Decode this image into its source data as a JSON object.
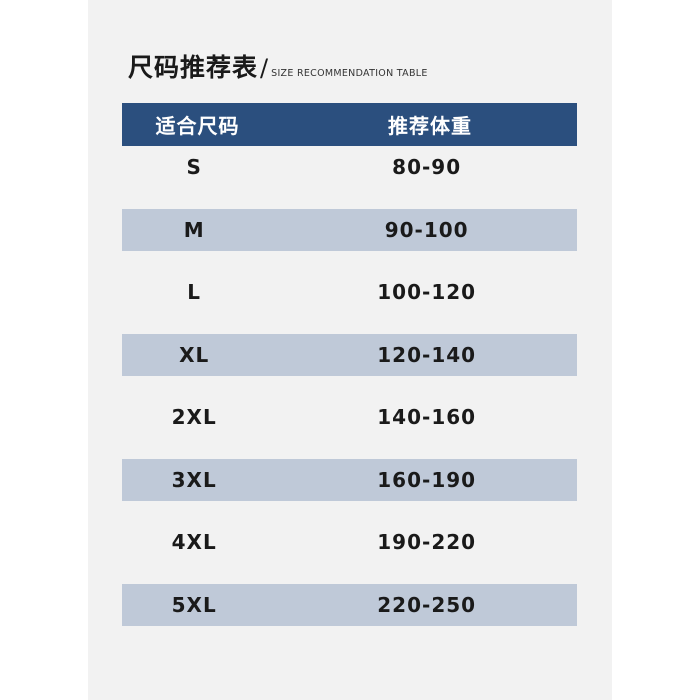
{
  "title": {
    "cn": "尺码推荐表",
    "slash": "/",
    "en": "SIZE RECOMMENDATION TABLE"
  },
  "colors": {
    "header_bg": "#2b4f7e",
    "shaded_row": "#bfc9d8",
    "panel": "#f2f2f2"
  },
  "table": {
    "headers": [
      "适合尺码",
      "推荐体重"
    ],
    "rows": [
      [
        "S",
        "80-90"
      ],
      [
        "M",
        "90-100"
      ],
      [
        "L",
        "100-120"
      ],
      [
        "XL",
        "120-140"
      ],
      [
        "2XL",
        "140-160"
      ],
      [
        "3XL",
        "160-190"
      ],
      [
        "4XL",
        "190-220"
      ],
      [
        "5XL",
        "220-250"
      ]
    ]
  }
}
